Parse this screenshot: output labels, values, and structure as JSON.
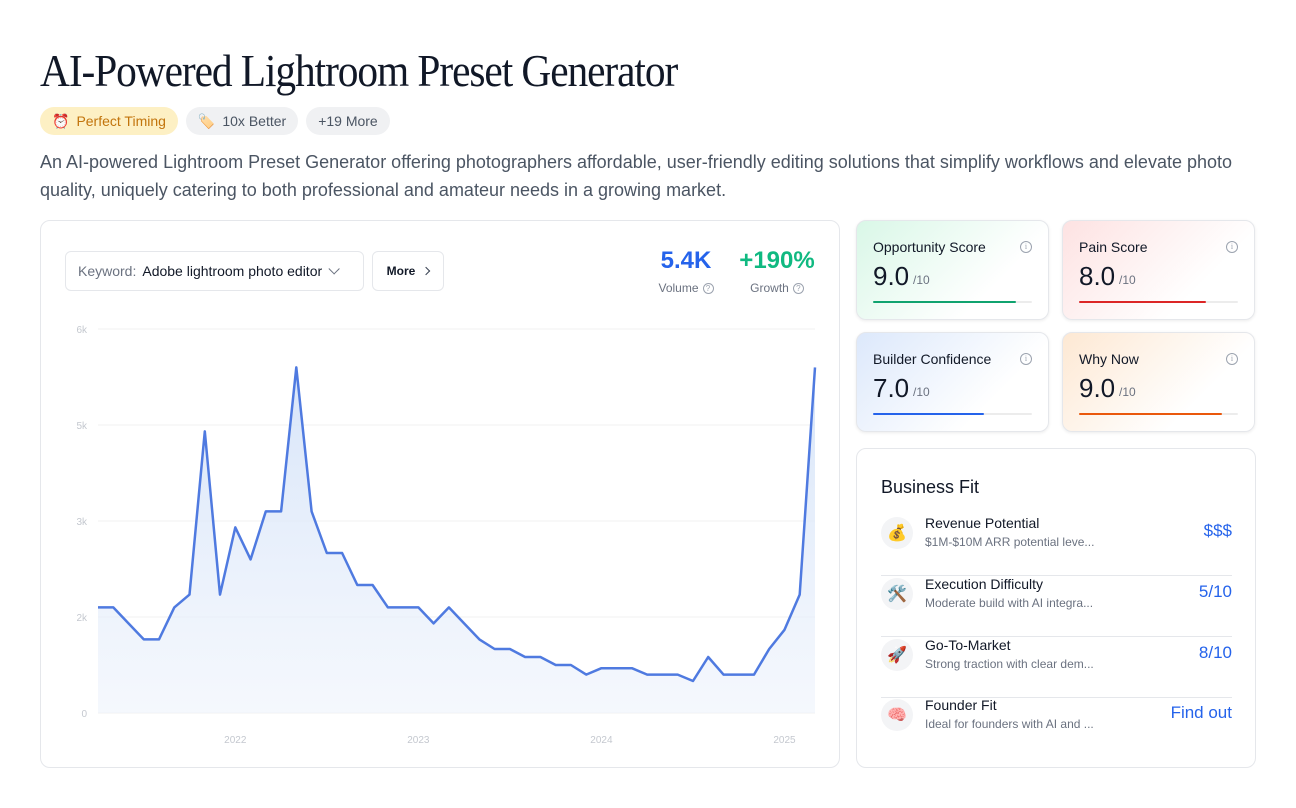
{
  "page": {
    "title": "AI-Powered Lightroom Preset Generator",
    "description": "An AI-powered Lightroom Preset Generator offering photographers affordable, user-friendly editing solutions that simplify workflows and elevate photo quality, uniquely catering to both professional and amateur needs in a growing market."
  },
  "badges": {
    "timing": {
      "icon": "⏰",
      "label": "Perfect Timing"
    },
    "better": {
      "icon": "🏷️",
      "label": "10x Better"
    },
    "more": {
      "label": "+19 More"
    }
  },
  "keyword": {
    "label": "Keyword:",
    "value": "Adobe lightroom photo editor",
    "more_button": "More"
  },
  "metrics": {
    "volume": {
      "value": "5.4K",
      "label": "Volume"
    },
    "growth": {
      "value": "+190%",
      "label": "Growth"
    }
  },
  "chart_data": {
    "type": "area",
    "title": "",
    "xlabel": "",
    "ylabel": "",
    "ylim": [
      0,
      6000
    ],
    "y_ticks": [
      {
        "v": 0,
        "label": "0"
      },
      {
        "v": 1500,
        "label": "2k"
      },
      {
        "v": 3000,
        "label": "3k"
      },
      {
        "v": 4500,
        "label": "5k"
      },
      {
        "v": 6000,
        "label": "6k"
      }
    ],
    "x_ticks": [
      {
        "i": 9,
        "label": "2022"
      },
      {
        "i": 21,
        "label": "2023"
      },
      {
        "i": 33,
        "label": "2024"
      },
      {
        "i": 45,
        "label": "2025"
      }
    ],
    "color": "#4f7ae0",
    "values": [
      1650,
      1650,
      1400,
      1150,
      1150,
      1650,
      1850,
      4400,
      1850,
      2900,
      2400,
      3150,
      3150,
      5400,
      3150,
      2500,
      2500,
      2000,
      2000,
      1650,
      1650,
      1650,
      1400,
      1650,
      1400,
      1150,
      1000,
      1000,
      875,
      875,
      750,
      750,
      600,
      700,
      700,
      700,
      600,
      600,
      600,
      500,
      875,
      600,
      600,
      600,
      1000,
      1300,
      1850,
      5400
    ]
  },
  "scores": [
    {
      "title": "Opportunity Score",
      "value": "9.0",
      "out_of": "/10",
      "fraction": 0.9,
      "color": "#10a36f"
    },
    {
      "title": "Pain Score",
      "value": "8.0",
      "out_of": "/10",
      "fraction": 0.8,
      "color": "#dc2626"
    },
    {
      "title": "Builder Confidence",
      "value": "7.0",
      "out_of": "/10",
      "fraction": 0.7,
      "color": "#2563eb"
    },
    {
      "title": "Why Now",
      "value": "9.0",
      "out_of": "/10",
      "fraction": 0.9,
      "color": "#ea580c"
    }
  ],
  "business_fit": {
    "title": "Business Fit",
    "rows": [
      {
        "icon": "💰",
        "name": "Revenue Potential",
        "sub": "$1M-$10M ARR potential leve...",
        "value": "$$$"
      },
      {
        "icon": "🛠️",
        "name": "Execution Difficulty",
        "sub": "Moderate build with AI integra...",
        "value": "5/10"
      },
      {
        "icon": "🚀",
        "name": "Go-To-Market",
        "sub": "Strong traction with clear dem...",
        "value": "8/10"
      },
      {
        "icon": "🧠",
        "name": "Founder Fit",
        "sub": "Ideal for founders with AI and ...",
        "value": "Find out"
      }
    ]
  }
}
